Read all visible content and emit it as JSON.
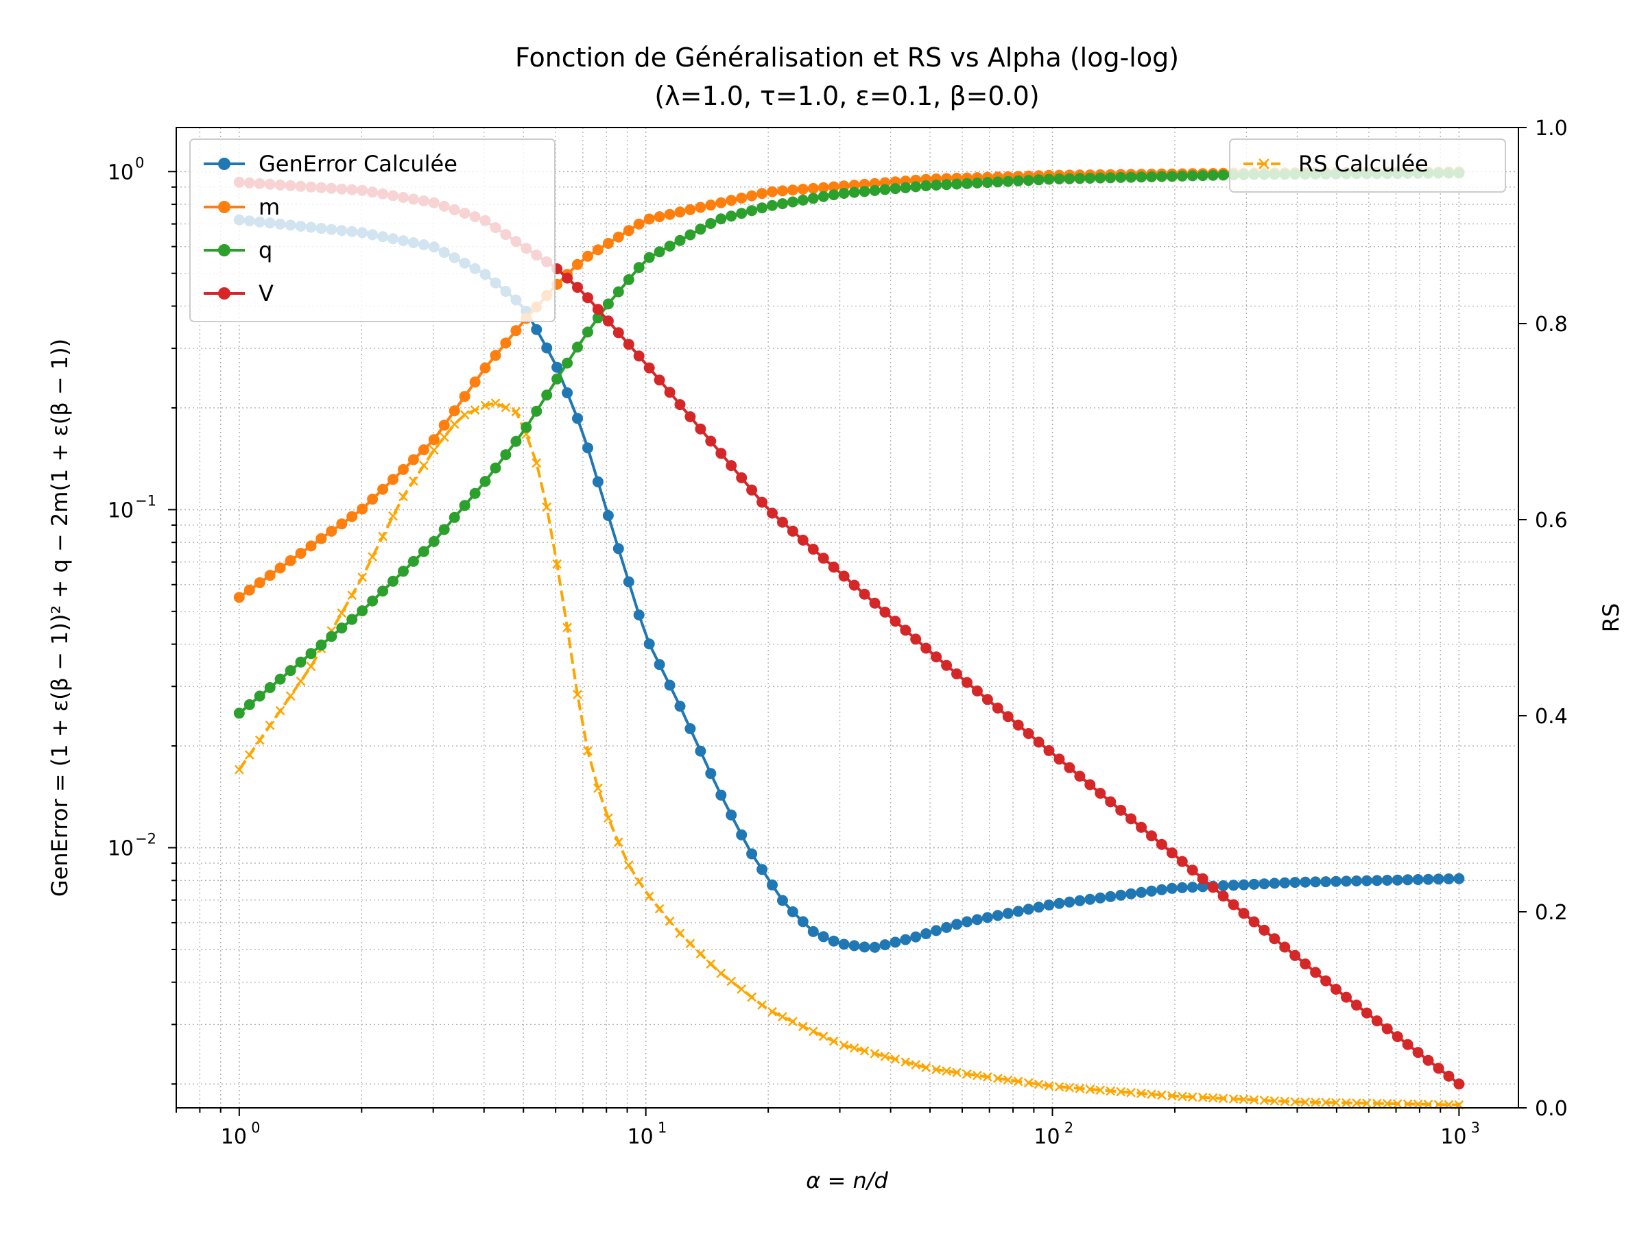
{
  "chart_data": {
    "type": "line",
    "title": "Fonction de Généralisation et RS vs Alpha (log-log)",
    "subtitle": "(λ=1.0, τ=1.0, ε=0.1, β=0.0)",
    "xlabel": "α = n/d",
    "ylabel_left": "GenError = (1 + ε(β − 1))² + q − 2m(1 + ε(β − 1))",
    "ylabel_right": "RS",
    "x_scale": "log",
    "y_left_scale": "log",
    "y_right_scale": "linear",
    "xlim": [
      0.7,
      1400
    ],
    "ylim_left": [
      0.0017,
      1.35
    ],
    "ylim_right": [
      0.0,
      1.0
    ],
    "x_ticks": [
      {
        "value": 1,
        "base": "10",
        "exp": "0"
      },
      {
        "value": 10,
        "base": "10",
        "exp": "1"
      },
      {
        "value": 100,
        "base": "10",
        "exp": "2"
      },
      {
        "value": 1000,
        "base": "10",
        "exp": "3"
      }
    ],
    "y_left_ticks": [
      {
        "value": 1,
        "base": "10",
        "exp": "0"
      },
      {
        "value": 0.1,
        "base": "10",
        "exp": "−1"
      },
      {
        "value": 0.01,
        "base": "10",
        "exp": "−2"
      }
    ],
    "y_right_ticks": [
      "0.0",
      "0.2",
      "0.4",
      "0.6",
      "0.8",
      "1.0"
    ],
    "grid": true,
    "legend_left_placement": "upper-left",
    "legend_right_placement": "upper-right",
    "n_points": 120,
    "x_range": [
      1,
      1000
    ],
    "series": [
      {
        "name": "GenError Calculée",
        "axis": "left",
        "color": "#1f77b4",
        "marker": "circle",
        "line": "solid",
        "points": [
          [
            1,
            0.72
          ],
          [
            2,
            0.66
          ],
          [
            3,
            0.6
          ],
          [
            4,
            0.5
          ],
          [
            5,
            0.4
          ],
          [
            6,
            0.27
          ],
          [
            7,
            0.17
          ],
          [
            8,
            0.1
          ],
          [
            10,
            0.042
          ],
          [
            12,
            0.027
          ],
          [
            15,
            0.015
          ],
          [
            18,
            0.0098
          ],
          [
            22,
            0.0068
          ],
          [
            26,
            0.0056
          ],
          [
            30,
            0.0052
          ],
          [
            36,
            0.00505
          ],
          [
            45,
            0.0054
          ],
          [
            60,
            0.006
          ],
          [
            100,
            0.0068
          ],
          [
            200,
            0.0076
          ],
          [
            400,
            0.0079
          ],
          [
            1000,
            0.0081
          ]
        ]
      },
      {
        "name": "m",
        "axis": "left",
        "color": "#ff7f0e",
        "marker": "circle",
        "line": "solid",
        "points": [
          [
            1,
            0.055
          ],
          [
            2,
            0.1
          ],
          [
            3,
            0.16
          ],
          [
            4,
            0.26
          ],
          [
            5,
            0.36
          ],
          [
            6,
            0.46
          ],
          [
            7,
            0.55
          ],
          [
            10,
            0.72
          ],
          [
            20,
            0.87
          ],
          [
            50,
            0.95
          ],
          [
            100,
            0.975
          ],
          [
            300,
            0.99
          ],
          [
            1000,
            0.998
          ]
        ]
      },
      {
        "name": "q",
        "axis": "left",
        "color": "#2ca02c",
        "marker": "circle",
        "line": "solid",
        "points": [
          [
            1,
            0.025
          ],
          [
            2,
            0.05
          ],
          [
            3,
            0.08
          ],
          [
            4,
            0.12
          ],
          [
            5,
            0.17
          ],
          [
            6,
            0.24
          ],
          [
            7,
            0.32
          ],
          [
            8,
            0.4
          ],
          [
            10,
            0.55
          ],
          [
            15,
            0.72
          ],
          [
            20,
            0.79
          ],
          [
            30,
            0.86
          ],
          [
            50,
            0.91
          ],
          [
            100,
            0.95
          ],
          [
            300,
            0.98
          ],
          [
            1000,
            0.99
          ]
        ]
      },
      {
        "name": "V",
        "axis": "left",
        "color": "#d62728",
        "marker": "circle",
        "line": "solid",
        "points": [
          [
            1,
            0.93
          ],
          [
            2,
            0.88
          ],
          [
            3,
            0.81
          ],
          [
            4,
            0.72
          ],
          [
            5,
            0.6
          ],
          [
            6,
            0.52
          ],
          [
            7,
            0.44
          ],
          [
            10,
            0.27
          ],
          [
            20,
            0.1
          ],
          [
            50,
            0.038
          ],
          [
            100,
            0.019
          ],
          [
            200,
            0.0095
          ],
          [
            300,
            0.0063
          ],
          [
            500,
            0.0038
          ],
          [
            1000,
            0.002
          ]
        ]
      },
      {
        "name": "RS Calculée",
        "axis": "right",
        "color": "#ffa500",
        "marker": "x",
        "line": "dashed",
        "points": [
          [
            1,
            0.345
          ],
          [
            1.5,
            0.45
          ],
          [
            2,
            0.54
          ],
          [
            2.5,
            0.62
          ],
          [
            3,
            0.67
          ],
          [
            3.5,
            0.705
          ],
          [
            4.2,
            0.72
          ],
          [
            4.8,
            0.71
          ],
          [
            5.3,
            0.67
          ],
          [
            5.8,
            0.6
          ],
          [
            6.3,
            0.51
          ],
          [
            6.8,
            0.42
          ],
          [
            7.3,
            0.35
          ],
          [
            8,
            0.3
          ],
          [
            9,
            0.25
          ],
          [
            10,
            0.22
          ],
          [
            12,
            0.18
          ],
          [
            15,
            0.14
          ],
          [
            20,
            0.1
          ],
          [
            30,
            0.065
          ],
          [
            50,
            0.04
          ],
          [
            100,
            0.022
          ],
          [
            200,
            0.012
          ],
          [
            400,
            0.006
          ],
          [
            1000,
            0.003
          ]
        ]
      }
    ]
  }
}
